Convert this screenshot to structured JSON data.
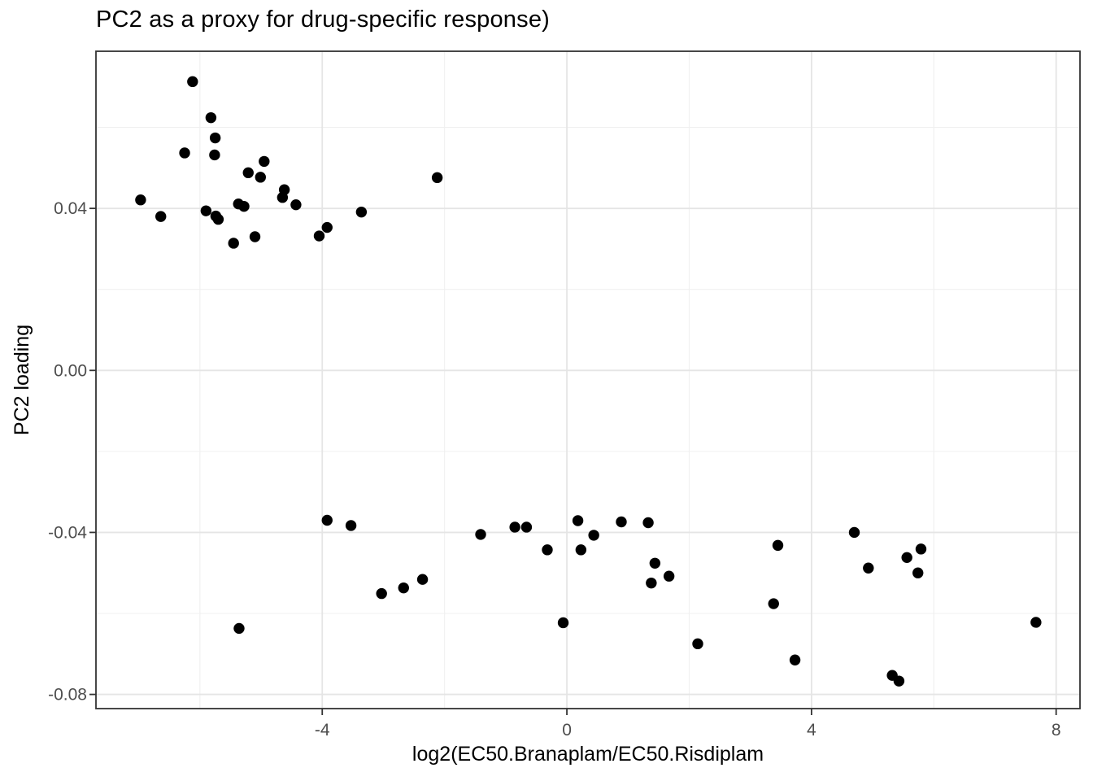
{
  "chart_data": {
    "type": "scatter",
    "title": "PC2 as a proxy for drug-specific response)",
    "xlabel": "log2(EC50.Branaplam/EC50.Risdiplam",
    "ylabel": "PC2 loading",
    "xlim": [
      -7.7,
      8.39
    ],
    "ylim": [
      -0.0835,
      0.0788
    ],
    "x_ticks": {
      "values": [
        -4,
        0,
        4,
        8
      ],
      "labels": [
        "-4",
        "0",
        "4",
        "8"
      ]
    },
    "y_ticks": {
      "values": [
        0.04,
        0.0,
        -0.04,
        -0.08
      ],
      "labels": [
        "0.04",
        "0.00",
        "-0.04",
        "-0.08"
      ]
    },
    "x_minor_ticks": [
      -6,
      -2,
      2,
      6
    ],
    "y_minor_ticks": [
      0.06,
      0.02,
      -0.02,
      -0.06
    ],
    "grid": "major+minor",
    "legend_position": "none",
    "style": {
      "background": "#ffffff",
      "panel_background": "#ffffff",
      "panel_border_color": "#333333",
      "grid_major_color": "#e5e5e5",
      "grid_minor_color": "#f0f0f0",
      "tick_mark_color": "#333333",
      "tick_label_color": "#4d4d4d",
      "text_color": "#000000",
      "point_color": "#000000",
      "point_radius_px": 6.7
    },
    "points": [
      [
        -6.12,
        0.0713
      ],
      [
        -5.82,
        0.0624
      ],
      [
        -5.75,
        0.0574
      ],
      [
        -6.25,
        0.0537
      ],
      [
        -5.76,
        0.0532
      ],
      [
        -4.95,
        0.0516
      ],
      [
        -5.21,
        0.0488
      ],
      [
        -5.01,
        0.0477
      ],
      [
        -2.12,
        0.0476
      ],
      [
        -4.62,
        0.0446
      ],
      [
        -4.65,
        0.0427
      ],
      [
        -6.97,
        0.0421
      ],
      [
        -5.37,
        0.0411
      ],
      [
        -4.43,
        0.0409
      ],
      [
        -5.28,
        0.0405
      ],
      [
        -5.9,
        0.0394
      ],
      [
        -3.36,
        0.0391
      ],
      [
        -5.74,
        0.0381
      ],
      [
        -6.64,
        0.038
      ],
      [
        -5.7,
        0.0373
      ],
      [
        -3.92,
        0.0353
      ],
      [
        -4.05,
        0.0332
      ],
      [
        -5.1,
        0.033
      ],
      [
        -5.45,
        0.0314
      ],
      [
        -3.92,
        -0.037
      ],
      [
        -3.53,
        -0.0383
      ],
      [
        0.18,
        -0.0371
      ],
      [
        0.89,
        -0.0374
      ],
      [
        1.33,
        -0.0376
      ],
      [
        -0.85,
        -0.0387
      ],
      [
        -0.66,
        -0.0387
      ],
      [
        4.7,
        -0.04
      ],
      [
        -1.41,
        -0.0405
      ],
      [
        0.44,
        -0.0407
      ],
      [
        3.45,
        -0.0432
      ],
      [
        5.79,
        -0.0441
      ],
      [
        -0.32,
        -0.0443
      ],
      [
        0.23,
        -0.0443
      ],
      [
        5.56,
        -0.0462
      ],
      [
        1.44,
        -0.0476
      ],
      [
        4.93,
        -0.0488
      ],
      [
        5.74,
        -0.05
      ],
      [
        1.67,
        -0.0508
      ],
      [
        -2.36,
        -0.0516
      ],
      [
        1.38,
        -0.0525
      ],
      [
        -2.67,
        -0.0537
      ],
      [
        -3.03,
        -0.0551
      ],
      [
        3.38,
        -0.0576
      ],
      [
        -0.06,
        -0.0623
      ],
      [
        7.67,
        -0.0622
      ],
      [
        -5.36,
        -0.0637
      ],
      [
        2.14,
        -0.0675
      ],
      [
        3.73,
        -0.0715
      ],
      [
        5.32,
        -0.0753
      ],
      [
        5.43,
        -0.0767
      ]
    ]
  }
}
